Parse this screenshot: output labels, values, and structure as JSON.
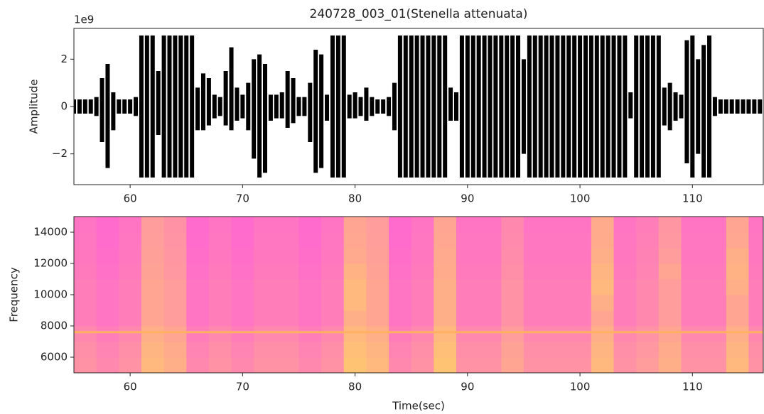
{
  "chart_data": [
    {
      "type": "waveform",
      "title": "240728_003_01(Stenella attenuata)",
      "ylabel": "Amplitude",
      "offset_label": "1e9",
      "color": "#000000",
      "x": [
        55,
        55.5,
        56,
        56.5,
        57,
        57.5,
        58,
        58.5,
        59,
        59.5,
        60,
        60.5,
        61,
        61.5,
        62,
        62.5,
        63,
        63.5,
        64,
        64.5,
        65,
        65.5,
        66,
        66.5,
        67,
        67.5,
        68,
        68.5,
        69,
        69.5,
        70,
        70.5,
        71,
        71.5,
        72,
        72.5,
        73,
        73.5,
        74,
        74.5,
        75,
        75.5,
        76,
        76.5,
        77,
        77.5,
        78,
        78.5,
        79,
        79.5,
        80,
        80.5,
        81,
        81.5,
        82,
        82.5,
        83,
        83.5,
        84,
        84.5,
        85,
        85.5,
        86,
        86.5,
        87,
        87.5,
        88,
        88.5,
        89,
        89.5,
        90,
        90.5,
        91,
        91.5,
        92,
        92.5,
        93,
        93.5,
        94,
        94.5,
        95,
        95.5,
        96,
        96.5,
        97,
        97.5,
        98,
        98.5,
        99,
        99.5,
        100,
        100.5,
        101,
        101.5,
        102,
        102.5,
        103,
        103.5,
        104,
        104.5,
        105,
        105.5,
        106,
        106.5,
        107,
        107.5,
        108,
        108.5,
        109,
        109.5,
        110,
        110.5,
        111,
        111.5,
        112,
        112.5,
        113,
        113.5,
        114,
        114.5,
        115,
        115.5,
        116
      ],
      "high": [
        0.3,
        0.3,
        0.3,
        0.3,
        0.4,
        1.2,
        1.8,
        0.6,
        0.3,
        0.3,
        0.3,
        0.4,
        3,
        3,
        3,
        1.5,
        3,
        3,
        3,
        3,
        3,
        3,
        0.8,
        1.4,
        1.2,
        0.5,
        0.4,
        1.5,
        2.5,
        0.8,
        0.5,
        1,
        2,
        2.2,
        1.8,
        0.5,
        0.5,
        0.6,
        1.5,
        1.2,
        0.4,
        0.4,
        1,
        2.4,
        2.2,
        0.5,
        3,
        3,
        3,
        0.5,
        0.6,
        0.4,
        0.8,
        0.4,
        0.3,
        0.3,
        0.4,
        1,
        3,
        3,
        3,
        3,
        3,
        3,
        3,
        3,
        3,
        0.8,
        0.6,
        3,
        3,
        3,
        3,
        3,
        3,
        3,
        3,
        3,
        3,
        3,
        2,
        3,
        3,
        3,
        3,
        3,
        3,
        3,
        3,
        3,
        3,
        3,
        3,
        3,
        3,
        3,
        3,
        3,
        3,
        0.6,
        3,
        3,
        3,
        3,
        3,
        0.8,
        1,
        0.6,
        0.5,
        2.8,
        3,
        2,
        2.6,
        3,
        0.4,
        0.3,
        0.3,
        0.3,
        0.3,
        0.3,
        0.3,
        0.3,
        0.3
      ],
      "low": [
        -0.3,
        -0.3,
        -0.3,
        -0.3,
        -0.4,
        -1.5,
        -2.6,
        -1,
        -0.3,
        -0.3,
        -0.3,
        -0.4,
        -3,
        -3,
        -3,
        -1.2,
        -3,
        -3,
        -3,
        -3,
        -3,
        -3,
        -1,
        -1,
        -0.8,
        -0.5,
        -0.4,
        -0.8,
        -1,
        -0.6,
        -0.5,
        -1,
        -2.2,
        -3,
        -2.8,
        -0.6,
        -0.5,
        -0.5,
        -0.9,
        -0.7,
        -0.4,
        -0.4,
        -1.5,
        -2.8,
        -2.6,
        -0.6,
        -3,
        -3,
        -3,
        -0.5,
        -0.5,
        -0.4,
        -0.6,
        -0.4,
        -0.3,
        -0.3,
        -0.4,
        -1,
        -3,
        -3,
        -3,
        -3,
        -3,
        -3,
        -3,
        -3,
        -3,
        -0.6,
        -0.6,
        -3,
        -3,
        -3,
        -3,
        -3,
        -3,
        -3,
        -3,
        -3,
        -3,
        -3,
        -2,
        -3,
        -3,
        -3,
        -3,
        -3,
        -3,
        -3,
        -3,
        -3,
        -3,
        -3,
        -3,
        -3,
        -3,
        -3,
        -3,
        -3,
        -3,
        -0.5,
        -3,
        -3,
        -3,
        -3,
        -3,
        -0.8,
        -1,
        -0.6,
        -0.5,
        -2.4,
        -3,
        -2,
        -3,
        -3,
        -0.4,
        -0.3,
        -0.3,
        -0.3,
        -0.3,
        -0.3,
        -0.3,
        -0.3,
        -0.3
      ],
      "xlim": [
        55,
        116.3
      ],
      "ylim": [
        -3.3,
        3.3
      ],
      "xticks": [
        60,
        70,
        80,
        90,
        100,
        110
      ],
      "yticks": [
        {
          "value": -2,
          "label": "−2"
        },
        0,
        2
      ]
    },
    {
      "type": "heatmap",
      "xlabel": "Time(sec)",
      "ylabel": "Frequency",
      "colormap": "spring",
      "x": [
        55,
        57,
        59,
        61,
        63,
        65,
        67,
        69,
        71,
        73,
        75,
        77,
        79,
        81,
        83,
        85,
        87,
        89,
        91,
        93,
        95,
        97,
        99,
        101,
        103,
        105,
        107,
        109,
        111,
        113,
        115
      ],
      "y": [
        5000,
        6000,
        7000,
        8000,
        9000,
        10000,
        11000,
        12000,
        13000,
        14000
      ],
      "z": [
        [
          0.45,
          0.4,
          0.45,
          0.65,
          0.6,
          0.4,
          0.45,
          0.4,
          0.45,
          0.45,
          0.4,
          0.45,
          0.7,
          0.65,
          0.4,
          0.45,
          0.7,
          0.45,
          0.45,
          0.55,
          0.45,
          0.45,
          0.45,
          0.65,
          0.45,
          0.5,
          0.6,
          0.45,
          0.45,
          0.65,
          0.45
        ],
        [
          0.43,
          0.38,
          0.43,
          0.63,
          0.58,
          0.38,
          0.43,
          0.38,
          0.43,
          0.43,
          0.38,
          0.43,
          0.68,
          0.63,
          0.38,
          0.43,
          0.68,
          0.43,
          0.43,
          0.53,
          0.43,
          0.43,
          0.43,
          0.63,
          0.43,
          0.48,
          0.58,
          0.43,
          0.43,
          0.63,
          0.43
        ],
        [
          0.4,
          0.35,
          0.4,
          0.6,
          0.55,
          0.35,
          0.4,
          0.35,
          0.4,
          0.4,
          0.35,
          0.4,
          0.65,
          0.6,
          0.35,
          0.4,
          0.65,
          0.4,
          0.4,
          0.5,
          0.4,
          0.4,
          0.4,
          0.6,
          0.4,
          0.45,
          0.55,
          0.4,
          0.4,
          0.6,
          0.4
        ],
        [
          0.35,
          0.3,
          0.35,
          0.55,
          0.5,
          0.3,
          0.35,
          0.3,
          0.35,
          0.35,
          0.3,
          0.35,
          0.6,
          0.55,
          0.3,
          0.35,
          0.6,
          0.35,
          0.35,
          0.45,
          0.35,
          0.35,
          0.35,
          0.55,
          0.35,
          0.4,
          0.5,
          0.35,
          0.35,
          0.55,
          0.35
        ],
        [
          0.35,
          0.3,
          0.35,
          0.55,
          0.5,
          0.3,
          0.35,
          0.3,
          0.35,
          0.35,
          0.3,
          0.35,
          0.65,
          0.55,
          0.3,
          0.35,
          0.6,
          0.35,
          0.35,
          0.45,
          0.35,
          0.35,
          0.35,
          0.6,
          0.35,
          0.4,
          0.5,
          0.35,
          0.35,
          0.55,
          0.35
        ],
        [
          0.35,
          0.3,
          0.35,
          0.55,
          0.5,
          0.3,
          0.35,
          0.3,
          0.35,
          0.35,
          0.3,
          0.35,
          0.65,
          0.55,
          0.3,
          0.35,
          0.6,
          0.35,
          0.35,
          0.45,
          0.35,
          0.35,
          0.35,
          0.65,
          0.35,
          0.4,
          0.5,
          0.35,
          0.35,
          0.6,
          0.35
        ],
        [
          0.33,
          0.28,
          0.33,
          0.53,
          0.48,
          0.28,
          0.33,
          0.28,
          0.33,
          0.33,
          0.28,
          0.33,
          0.62,
          0.53,
          0.28,
          0.33,
          0.58,
          0.33,
          0.33,
          0.43,
          0.33,
          0.33,
          0.33,
          0.63,
          0.33,
          0.38,
          0.55,
          0.33,
          0.33,
          0.62,
          0.33
        ],
        [
          0.32,
          0.27,
          0.32,
          0.52,
          0.47,
          0.27,
          0.32,
          0.27,
          0.32,
          0.32,
          0.27,
          0.32,
          0.57,
          0.52,
          0.27,
          0.32,
          0.57,
          0.32,
          0.32,
          0.42,
          0.32,
          0.32,
          0.32,
          0.6,
          0.32,
          0.37,
          0.5,
          0.32,
          0.32,
          0.6,
          0.32
        ],
        [
          0.31,
          0.26,
          0.31,
          0.51,
          0.46,
          0.26,
          0.31,
          0.26,
          0.31,
          0.31,
          0.26,
          0.31,
          0.56,
          0.51,
          0.26,
          0.31,
          0.56,
          0.31,
          0.31,
          0.41,
          0.31,
          0.31,
          0.31,
          0.58,
          0.31,
          0.36,
          0.48,
          0.31,
          0.31,
          0.56,
          0.31
        ],
        [
          0.3,
          0.25,
          0.3,
          0.5,
          0.45,
          0.25,
          0.3,
          0.25,
          0.3,
          0.3,
          0.25,
          0.3,
          0.55,
          0.5,
          0.25,
          0.3,
          0.55,
          0.3,
          0.3,
          0.4,
          0.3,
          0.3,
          0.3,
          0.58,
          0.3,
          0.35,
          0.47,
          0.3,
          0.3,
          0.55,
          0.3
        ]
      ],
      "lines": [
        7600
      ],
      "line_color": "#ffb060",
      "xlim": [
        55,
        116.3
      ],
      "ylim": [
        5000,
        15000
      ],
      "xticks": [
        60,
        70,
        80,
        90,
        100,
        110
      ],
      "yticks": [
        6000,
        8000,
        10000,
        12000,
        14000
      ]
    }
  ]
}
